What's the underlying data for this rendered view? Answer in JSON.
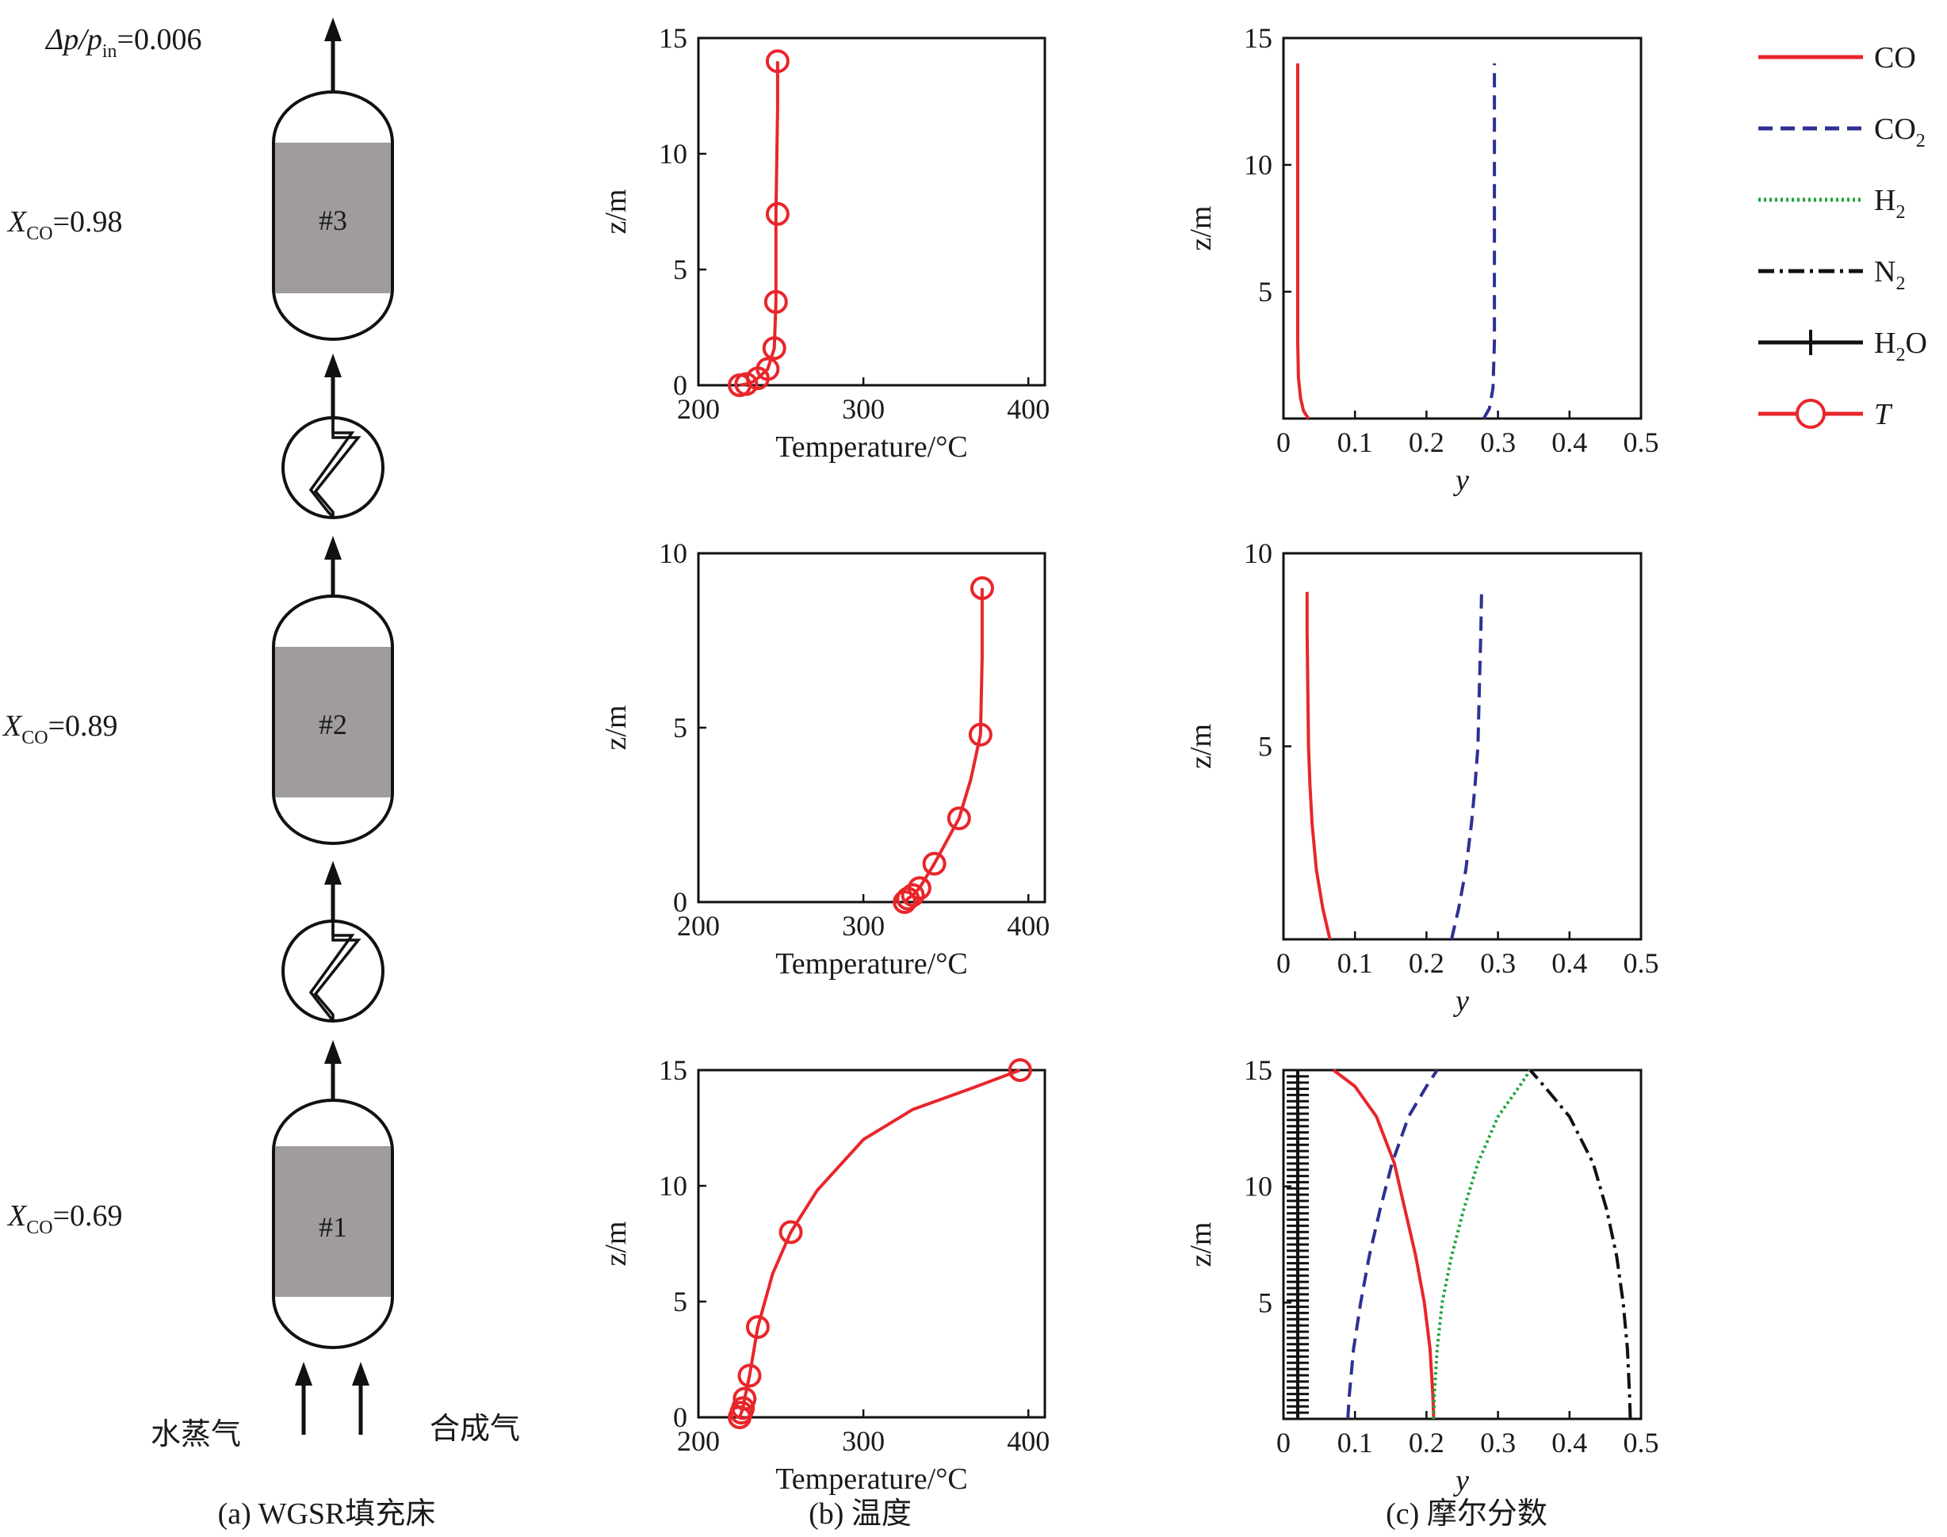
{
  "colors": {
    "CO": "#e8262b",
    "CO2": "#2e3192",
    "H2": "#1fa33a",
    "N2": "#111111",
    "H2O": "#111111",
    "T": "#e8262b",
    "vessel_bed": "#a09c9d",
    "axis": "#111111"
  },
  "schematic": {
    "dp_label": "Δp/p",
    "dp_sub": "in",
    "dp_value": "=0.006",
    "stages": [
      {
        "name": "#3",
        "x_var": "X",
        "x_sub": "CO",
        "x_value": "=0.98"
      },
      {
        "name": "#2",
        "x_var": "X",
        "x_sub": "CO",
        "x_value": "=0.89"
      },
      {
        "name": "#1",
        "x_var": "X",
        "x_sub": "CO",
        "x_value": "=0.69"
      }
    ],
    "inlet_steam": "水蒸气",
    "inlet_syngas": "合成气",
    "icons": [
      "heat-exchanger-icon",
      "heat-exchanger-icon"
    ]
  },
  "captions": {
    "a": "(a) WGSR填充床",
    "b": "(b) 温度",
    "c": "(c) 摩尔分数"
  },
  "legend": {
    "items": [
      {
        "key": "CO",
        "label": "CO",
        "sub": "",
        "tail": "",
        "italic": false,
        "style": "solid"
      },
      {
        "key": "CO2",
        "label": "CO",
        "sub": "2",
        "tail": "",
        "italic": false,
        "style": "dashed"
      },
      {
        "key": "H2",
        "label": "H",
        "sub": "2",
        "tail": "",
        "italic": false,
        "style": "dotted"
      },
      {
        "key": "N2",
        "label": "N",
        "sub": "2",
        "tail": "",
        "italic": false,
        "style": "dashdot"
      },
      {
        "key": "H2O",
        "label": "H",
        "sub": "2",
        "tail": "O",
        "italic": false,
        "style": "plus"
      },
      {
        "key": "T",
        "label": "T",
        "sub": "",
        "tail": "",
        "italic": true,
        "style": "circle"
      }
    ]
  },
  "chart_data": [
    {
      "type": "line",
      "panel": "b",
      "stage": 3,
      "xlabel": "Temperature/°C",
      "ylabel": "z/m",
      "xlim": [
        200,
        410
      ],
      "ylim": [
        0,
        15
      ],
      "xticks": [
        200,
        300,
        400
      ],
      "yticks": [
        0,
        5,
        10,
        15
      ],
      "series": [
        {
          "key": "T",
          "markers": true,
          "x": [
            225,
            229,
            233,
            236,
            242,
            246,
            247,
            247,
            248,
            248
          ],
          "y": [
            0,
            0.05,
            0.15,
            0.3,
            0.7,
            1.6,
            3.6,
            7.4,
            12,
            14
          ],
          "marker_x": [
            225,
            229,
            236,
            242,
            246,
            247,
            248,
            248
          ],
          "marker_y": [
            0,
            0.05,
            0.3,
            0.7,
            1.6,
            3.6,
            7.4,
            14
          ]
        }
      ]
    },
    {
      "type": "line",
      "panel": "c",
      "stage": 3,
      "xlabel": "y",
      "ylabel": "z/m",
      "xlim": [
        0,
        0.5
      ],
      "ylim": [
        0,
        15
      ],
      "xticks": [
        0,
        0.1,
        0.2,
        0.3,
        0.4,
        0.5
      ],
      "yticks": [
        5,
        10,
        15
      ],
      "series": [
        {
          "key": "CO",
          "x": [
            0.035,
            0.028,
            0.024,
            0.021,
            0.02,
            0.02,
            0.02,
            0.02
          ],
          "y": [
            0,
            0.3,
            0.8,
            1.6,
            3,
            6,
            10,
            14
          ]
        },
        {
          "key": "CO2",
          "x": [
            0.28,
            0.288,
            0.293,
            0.295,
            0.295,
            0.295
          ],
          "y": [
            0,
            0.4,
            1.2,
            3,
            8,
            14
          ]
        }
      ]
    },
    {
      "type": "line",
      "panel": "b",
      "stage": 2,
      "xlabel": "Temperature/°C",
      "ylabel": "z/m",
      "xlim": [
        200,
        410
      ],
      "ylim": [
        0,
        10
      ],
      "xticks": [
        200,
        300,
        400
      ],
      "yticks": [
        0,
        5,
        10
      ],
      "series": [
        {
          "key": "T",
          "markers": true,
          "x": [
            325,
            327,
            330,
            334,
            343,
            358,
            365,
            371,
            372,
            372
          ],
          "y": [
            0,
            0.1,
            0.2,
            0.4,
            1.1,
            2.4,
            3.5,
            4.8,
            7,
            9
          ],
          "marker_x": [
            325,
            327,
            330,
            334,
            343,
            358,
            371,
            372
          ],
          "marker_y": [
            0,
            0.1,
            0.2,
            0.4,
            1.1,
            2.4,
            4.8,
            9
          ]
        }
      ]
    },
    {
      "type": "line",
      "panel": "c",
      "stage": 2,
      "xlabel": "y",
      "ylabel": "z/m",
      "xlim": [
        0,
        0.5
      ],
      "ylim": [
        0,
        10
      ],
      "xticks": [
        0,
        0.1,
        0.2,
        0.3,
        0.4,
        0.5
      ],
      "yticks": [
        5,
        10
      ],
      "series": [
        {
          "key": "CO",
          "x": [
            0.065,
            0.055,
            0.046,
            0.04,
            0.037,
            0.035,
            0.034,
            0.033,
            0.033
          ],
          "y": [
            0,
            0.8,
            1.8,
            3,
            4,
            5,
            6.5,
            8,
            9
          ]
        },
        {
          "key": "CO2",
          "x": [
            0.235,
            0.245,
            0.255,
            0.263,
            0.268,
            0.272,
            0.274,
            0.276,
            0.277
          ],
          "y": [
            0,
            0.8,
            1.8,
            3,
            4,
            5,
            6.5,
            8,
            9
          ]
        }
      ]
    },
    {
      "type": "line",
      "panel": "b",
      "stage": 1,
      "xlabel": "Temperature/°C",
      "ylabel": "z/m",
      "xlim": [
        200,
        410
      ],
      "ylim": [
        0,
        15
      ],
      "xticks": [
        200,
        300,
        400
      ],
      "yticks": [
        0,
        5,
        10,
        15
      ],
      "series": [
        {
          "key": "T",
          "markers": true,
          "x": [
            225,
            226,
            227,
            228,
            231,
            236,
            245,
            256,
            272,
            300,
            330,
            365,
            395
          ],
          "y": [
            0,
            0.2,
            0.4,
            0.8,
            1.8,
            3.9,
            6.2,
            8,
            9.8,
            12,
            13.3,
            14.2,
            15
          ],
          "marker_x": [
            225,
            226,
            227,
            228,
            231,
            236,
            256,
            395
          ],
          "marker_y": [
            0,
            0.2,
            0.4,
            0.8,
            1.8,
            3.9,
            8,
            15
          ]
        }
      ]
    },
    {
      "type": "line",
      "panel": "c",
      "stage": 1,
      "xlabel": "y",
      "ylabel": "z/m",
      "xlim": [
        0,
        0.5
      ],
      "ylim": [
        0,
        15
      ],
      "xticks": [
        0,
        0.1,
        0.2,
        0.3,
        0.4,
        0.5
      ],
      "yticks": [
        5,
        10,
        15
      ],
      "series": [
        {
          "key": "CO",
          "x": [
            0.21,
            0.209,
            0.205,
            0.197,
            0.185,
            0.17,
            0.155,
            0.13,
            0.1,
            0.07
          ],
          "y": [
            0,
            1,
            3,
            5,
            7,
            9,
            11,
            13,
            14.3,
            15
          ]
        },
        {
          "key": "CO2",
          "x": [
            0.09,
            0.092,
            0.098,
            0.108,
            0.12,
            0.135,
            0.152,
            0.175,
            0.2,
            0.215
          ],
          "y": [
            0,
            1,
            3,
            5,
            7,
            9,
            11,
            13,
            14.3,
            15
          ]
        },
        {
          "key": "H2",
          "x": [
            0.21,
            0.211,
            0.215,
            0.222,
            0.235,
            0.252,
            0.272,
            0.3,
            0.33,
            0.345
          ],
          "y": [
            0,
            1,
            3,
            5,
            7,
            9,
            11,
            13,
            14.3,
            15
          ]
        },
        {
          "key": "N2",
          "x": [
            0.485,
            0.484,
            0.481,
            0.475,
            0.466,
            0.452,
            0.433,
            0.4,
            0.365,
            0.345
          ],
          "y": [
            0,
            1,
            3,
            5,
            7,
            9,
            11,
            13,
            14.3,
            15
          ]
        },
        {
          "key": "H2O",
          "x": [
            0.02,
            0.02,
            0.02,
            0.02,
            0.02,
            0.02,
            0.02,
            0.02
          ],
          "y": [
            0,
            2,
            4,
            6,
            8,
            10,
            12,
            15
          ]
        }
      ]
    }
  ]
}
